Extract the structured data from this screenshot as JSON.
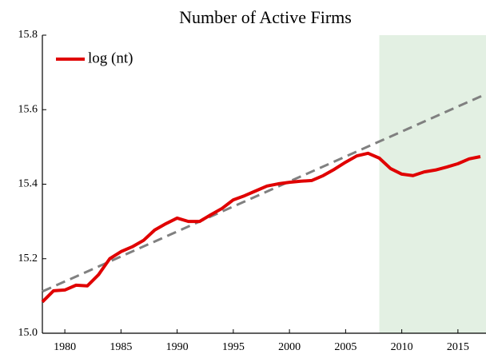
{
  "chart_data": {
    "type": "line",
    "title": "Number of Active Firms",
    "x": [
      1978,
      1979,
      1980,
      1981,
      1982,
      1983,
      1984,
      1985,
      1986,
      1987,
      1988,
      1989,
      1990,
      1991,
      1992,
      1993,
      1994,
      1995,
      1996,
      1997,
      1998,
      1999,
      2000,
      2001,
      2002,
      2003,
      2004,
      2005,
      2006,
      2007,
      2008,
      2009,
      2010,
      2011,
      2012,
      2013,
      2014,
      2015,
      2016,
      2017
    ],
    "series": [
      {
        "name": "log (nt)",
        "color": "#e00000",
        "values": [
          15.084,
          15.114,
          15.116,
          15.129,
          15.127,
          15.157,
          15.2,
          15.219,
          15.232,
          15.249,
          15.277,
          15.294,
          15.309,
          15.3,
          15.3,
          15.318,
          15.335,
          15.358,
          15.369,
          15.382,
          15.395,
          15.401,
          15.405,
          15.408,
          15.41,
          15.423,
          15.44,
          15.459,
          15.476,
          15.483,
          15.47,
          15.442,
          15.427,
          15.423,
          15.433,
          15.438,
          15.446,
          15.455,
          15.468,
          15.474
        ]
      }
    ],
    "trend": {
      "color": "#808080",
      "x": [
        1978,
        2017.5
      ],
      "values": [
        15.112,
        15.642
      ]
    },
    "shaded_region": {
      "x": [
        2008,
        2017.5
      ],
      "color": "#e3f0e3"
    },
    "xlim": [
      1978,
      2017.5
    ],
    "ylim": [
      15.0,
      15.8
    ],
    "xticks": [
      1980,
      1985,
      1990,
      1995,
      2000,
      2005,
      2010,
      2015
    ],
    "yticks": [
      {
        "value": 15.0,
        "label": "15.0"
      },
      15.2,
      15.4,
      15.6,
      15.8
    ],
    "legend": "upper left",
    "grid": false
  }
}
